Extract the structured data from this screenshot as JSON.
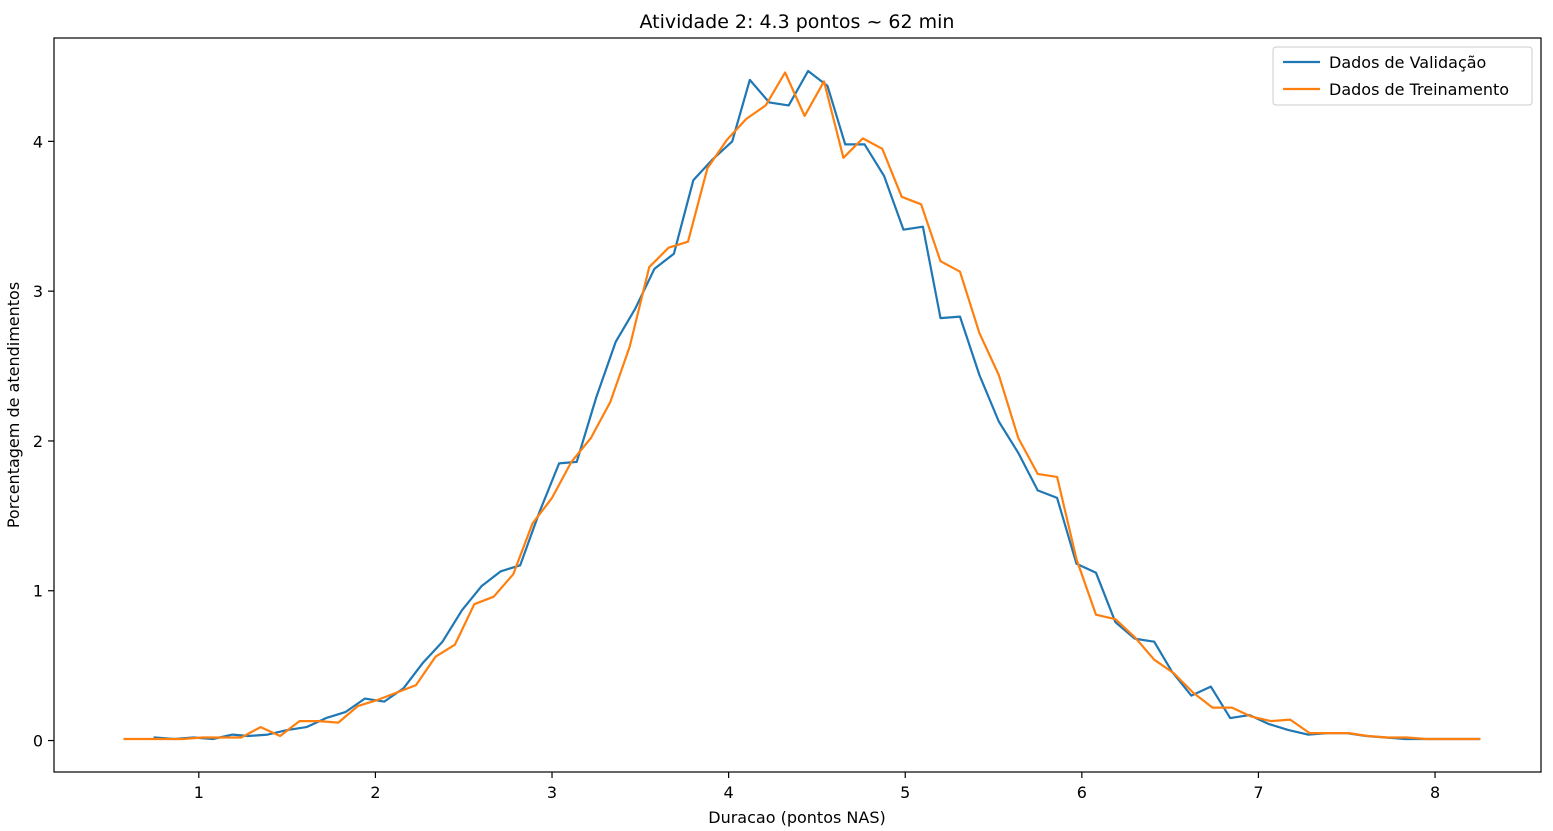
{
  "chart_data": {
    "type": "line",
    "title": "Atividade 2: 4.3 pontos ~ 62 min",
    "xlabel": "Duracao (pontos NAS)",
    "ylabel": "Porcentagem de atendimentos",
    "xlim": [
      0.18,
      8.6
    ],
    "ylim": [
      -0.21,
      4.69
    ],
    "xticks": [
      1,
      2,
      3,
      4,
      5,
      6,
      7,
      8
    ],
    "yticks": [
      0,
      1,
      2,
      3,
      4
    ],
    "xtick_labels": [
      "1",
      "2",
      "3",
      "4",
      "5",
      "6",
      "7",
      "8"
    ],
    "ytick_labels": [
      "0",
      "1",
      "2",
      "3",
      "4"
    ],
    "grid": false,
    "legend_position": "top-right",
    "series": [
      {
        "name": "Dados de Validação",
        "color": "#1f77b4",
        "x": [
          0.75,
          0.86,
          0.97,
          1.08,
          1.19,
          1.28,
          1.39,
          1.5,
          1.61,
          1.72,
          1.83,
          1.94,
          2.05,
          2.16,
          2.27,
          2.38,
          2.49,
          2.6,
          2.71,
          2.82,
          2.93,
          3.04,
          3.14,
          3.25,
          3.36,
          3.47,
          3.58,
          3.69,
          3.8,
          3.91,
          4.02,
          4.12,
          4.23,
          4.34,
          4.45,
          4.56,
          4.66,
          4.77,
          4.88,
          4.99,
          5.1,
          5.2,
          5.31,
          5.42,
          5.53,
          5.64,
          5.75,
          5.86,
          5.97,
          6.08,
          6.19,
          6.3,
          6.41,
          6.51,
          6.62,
          6.73,
          6.84,
          6.95,
          7.06,
          7.17,
          7.28,
          7.39,
          7.5,
          7.61,
          7.72,
          7.83,
          7.94,
          8.05,
          8.16,
          8.25
        ],
        "y": [
          0.02,
          0.01,
          0.02,
          0.01,
          0.04,
          0.03,
          0.04,
          0.07,
          0.09,
          0.15,
          0.19,
          0.28,
          0.26,
          0.35,
          0.52,
          0.66,
          0.87,
          1.03,
          1.13,
          1.17,
          1.53,
          1.85,
          1.86,
          2.29,
          2.66,
          2.88,
          3.15,
          3.25,
          3.74,
          3.88,
          4.0,
          4.41,
          4.26,
          4.24,
          4.47,
          4.37,
          3.98,
          3.98,
          3.77,
          3.41,
          3.43,
          2.82,
          2.83,
          2.44,
          2.13,
          1.92,
          1.67,
          1.62,
          1.18,
          1.12,
          0.79,
          0.68,
          0.66,
          0.46,
          0.3,
          0.36,
          0.15,
          0.17,
          0.11,
          0.07,
          0.04,
          0.05,
          0.05,
          0.03,
          0.02,
          0.01,
          0.01,
          0.01,
          0.01,
          0.01
        ]
      },
      {
        "name": "Dados de Treinamento",
        "color": "#ff7f0e",
        "x": [
          0.58,
          0.69,
          0.8,
          0.91,
          1.02,
          1.13,
          1.24,
          1.35,
          1.46,
          1.57,
          1.68,
          1.79,
          1.9,
          2.01,
          2.12,
          2.23,
          2.34,
          2.45,
          2.56,
          2.67,
          2.78,
          2.89,
          3.0,
          3.11,
          3.22,
          3.33,
          3.44,
          3.55,
          3.66,
          3.77,
          3.88,
          3.99,
          4.1,
          4.21,
          4.32,
          4.43,
          4.54,
          4.65,
          4.76,
          4.87,
          4.98,
          5.09,
          5.2,
          5.31,
          5.42,
          5.53,
          5.64,
          5.75,
          5.86,
          5.97,
          6.08,
          6.19,
          6.3,
          6.41,
          6.52,
          6.63,
          6.74,
          6.85,
          6.96,
          7.07,
          7.18,
          7.29,
          7.4,
          7.51,
          7.62,
          7.73,
          7.84,
          7.95,
          8.06,
          8.17,
          8.25
        ],
        "y": [
          0.01,
          0.01,
          0.01,
          0.01,
          0.02,
          0.02,
          0.02,
          0.09,
          0.03,
          0.13,
          0.13,
          0.12,
          0.23,
          0.27,
          0.32,
          0.37,
          0.56,
          0.64,
          0.91,
          0.96,
          1.11,
          1.45,
          1.62,
          1.86,
          2.02,
          2.26,
          2.63,
          3.16,
          3.29,
          3.33,
          3.82,
          4.01,
          4.15,
          4.24,
          4.46,
          4.17,
          4.4,
          3.89,
          4.02,
          3.95,
          3.63,
          3.58,
          3.2,
          3.13,
          2.72,
          2.44,
          2.02,
          1.78,
          1.76,
          1.21,
          0.84,
          0.81,
          0.69,
          0.54,
          0.45,
          0.32,
          0.22,
          0.22,
          0.16,
          0.13,
          0.14,
          0.05,
          0.05,
          0.05,
          0.03,
          0.02,
          0.02,
          0.01,
          0.01,
          0.01,
          0.01
        ]
      }
    ]
  }
}
